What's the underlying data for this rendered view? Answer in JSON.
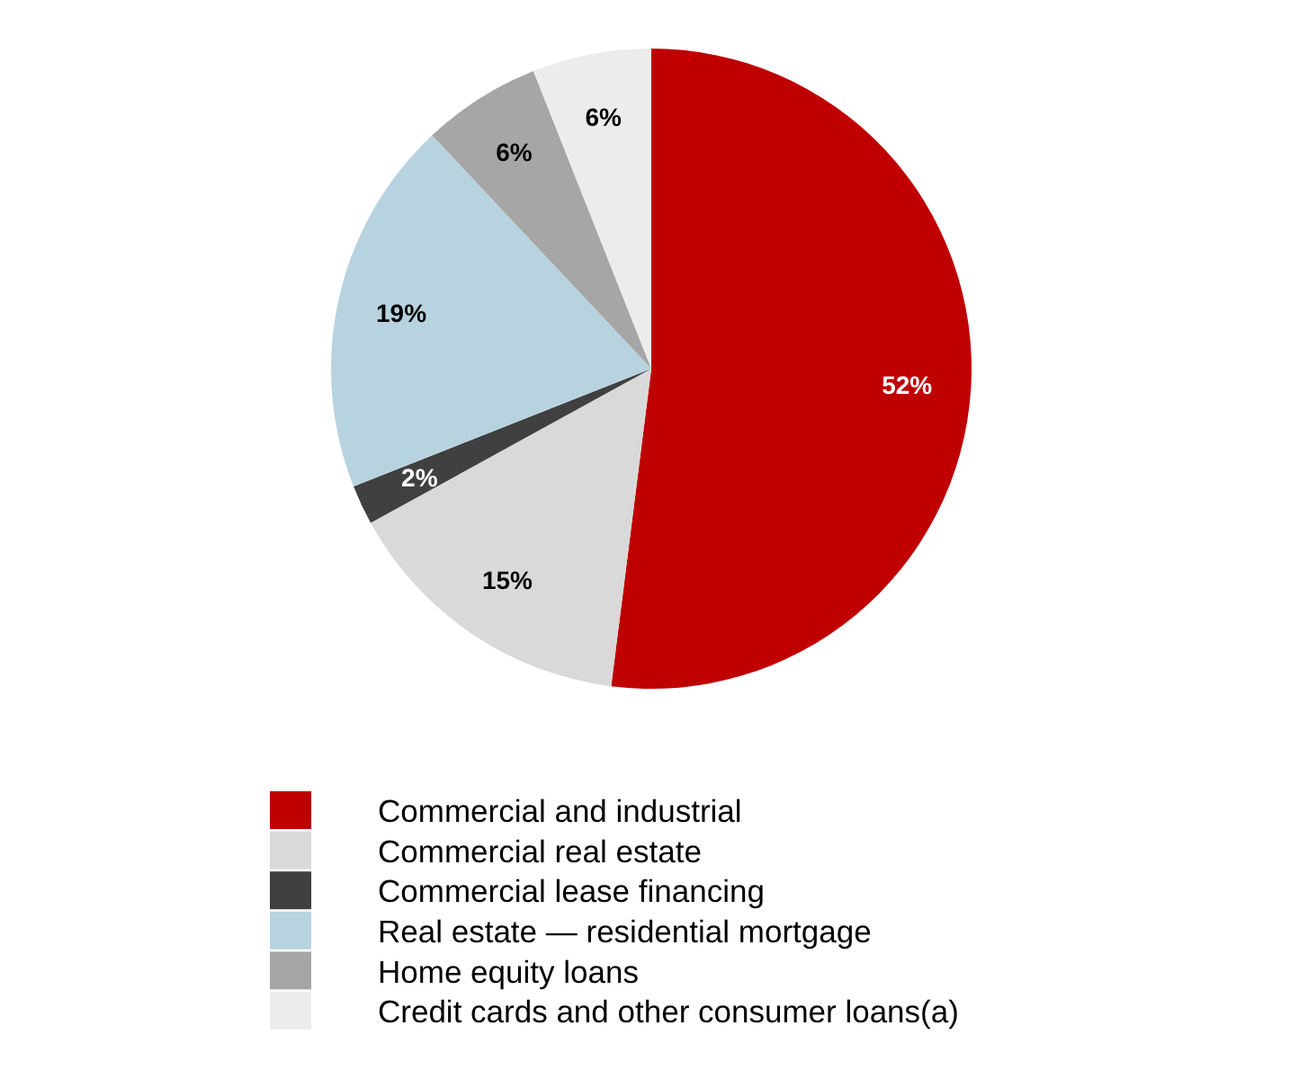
{
  "chart_data": {
    "type": "pie",
    "categories": [
      "Commercial and industrial",
      "Commercial real estate",
      "Commercial lease financing",
      "Real estate — residential mortgage",
      "Home equity loans",
      "Credit cards and other consumer loans(a)"
    ],
    "values": [
      52,
      15,
      2,
      19,
      6,
      6
    ],
    "colors": [
      "#c00000",
      "#d9d9d9",
      "#404040",
      "#b8d3e0",
      "#a6a6a6",
      "#ececec"
    ],
    "value_labels": [
      "52%",
      "15%",
      "2%",
      "19%",
      "6%",
      "6%"
    ],
    "legend": "bottom"
  }
}
